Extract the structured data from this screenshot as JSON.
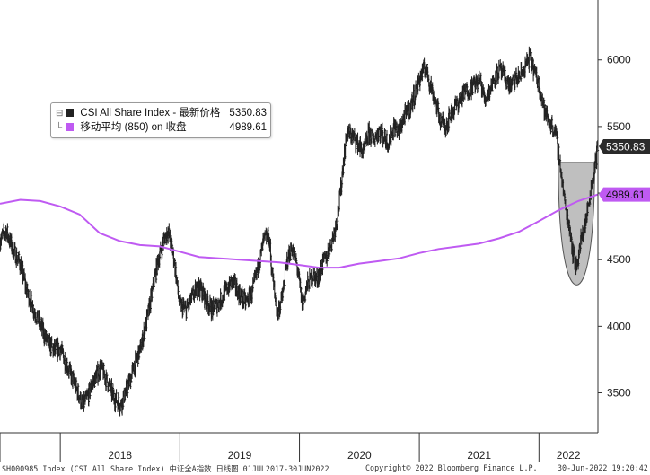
{
  "chart_data": {
    "type": "line",
    "title": "",
    "xlabel": "",
    "ylabel": "",
    "x_range": [
      "2017-07-01",
      "2022-06-30"
    ],
    "ylim": [
      3200,
      6450
    ],
    "y_ticks": [
      3500,
      4000,
      4500,
      5000,
      5500,
      6000
    ],
    "y_tick_labels": [
      "3500",
      "4000",
      "4500",
      "5000",
      "5500",
      "6000"
    ],
    "x_tick_labels": [
      "2018",
      "2019",
      "2020",
      "2021",
      "2022"
    ],
    "x_tick_positions": [
      "2018-01-01",
      "2019-01-01",
      "2020-01-01",
      "2021-01-01",
      "2022-01-01"
    ],
    "grid": false,
    "legend_position": "top-left",
    "series": [
      {
        "name": "CSI All Share Index - 最新价格",
        "legend_value": "5350.83",
        "last_label": "5350.83",
        "style": "price-bars",
        "color": "#222222",
        "points": [
          [
            "2017-07-03",
            4650
          ],
          [
            "2017-07-20",
            4720
          ],
          [
            "2017-08-10",
            4570
          ],
          [
            "2017-09-01",
            4470
          ],
          [
            "2017-09-20",
            4270
          ],
          [
            "2017-10-10",
            4140
          ],
          [
            "2017-11-01",
            4010
          ],
          [
            "2017-11-20",
            3900
          ],
          [
            "2017-12-10",
            3820
          ],
          [
            "2018-01-01",
            3830
          ],
          [
            "2018-01-20",
            3720
          ],
          [
            "2018-02-08",
            3600
          ],
          [
            "2018-02-28",
            3480
          ],
          [
            "2018-03-10",
            3400
          ],
          [
            "2018-03-25",
            3470
          ],
          [
            "2018-04-15",
            3600
          ],
          [
            "2018-05-05",
            3690
          ],
          [
            "2018-05-25",
            3580
          ],
          [
            "2018-06-15",
            3460
          ],
          [
            "2018-07-05",
            3410
          ],
          [
            "2018-07-25",
            3540
          ],
          [
            "2018-08-15",
            3700
          ],
          [
            "2018-09-05",
            3850
          ],
          [
            "2018-09-25",
            4080
          ],
          [
            "2018-10-10",
            4270
          ],
          [
            "2018-10-25",
            4480
          ],
          [
            "2018-11-10",
            4620
          ],
          [
            "2018-11-25",
            4720
          ],
          [
            "2018-12-05",
            4620
          ],
          [
            "2018-12-15",
            4500
          ],
          [
            "2018-12-31",
            4160
          ],
          [
            "2019-01-20",
            4120
          ],
          [
            "2019-02-10",
            4230
          ],
          [
            "2019-03-01",
            4300
          ],
          [
            "2019-03-20",
            4210
          ],
          [
            "2019-04-10",
            4120
          ],
          [
            "2019-05-01",
            4180
          ],
          [
            "2019-05-20",
            4260
          ],
          [
            "2019-06-10",
            4340
          ],
          [
            "2019-06-30",
            4250
          ],
          [
            "2019-07-20",
            4180
          ],
          [
            "2019-08-10",
            4250
          ],
          [
            "2019-08-30",
            4470
          ],
          [
            "2019-09-15",
            4650
          ],
          [
            "2019-09-30",
            4670
          ],
          [
            "2019-10-10",
            4400
          ],
          [
            "2019-10-25",
            4090
          ],
          [
            "2019-11-10",
            4220
          ],
          [
            "2019-11-25",
            4500
          ],
          [
            "2019-12-10",
            4590
          ],
          [
            "2019-12-25",
            4450
          ],
          [
            "2020-01-10",
            4160
          ],
          [
            "2020-01-25",
            4310
          ],
          [
            "2020-02-10",
            4380
          ],
          [
            "2020-02-25",
            4360
          ],
          [
            "2020-03-10",
            4460
          ],
          [
            "2020-03-25",
            4530
          ],
          [
            "2020-04-10",
            4650
          ],
          [
            "2020-04-25",
            4800
          ],
          [
            "2020-05-05",
            5000
          ],
          [
            "2020-05-15",
            5250
          ],
          [
            "2020-05-25",
            5450
          ],
          [
            "2020-06-10",
            5430
          ],
          [
            "2020-06-30",
            5360
          ],
          [
            "2020-07-15",
            5300
          ],
          [
            "2020-07-31",
            5450
          ],
          [
            "2020-08-15",
            5400
          ],
          [
            "2020-08-31",
            5480
          ],
          [
            "2020-09-15",
            5420
          ],
          [
            "2020-09-30",
            5380
          ],
          [
            "2020-10-15",
            5500
          ],
          [
            "2020-10-31",
            5460
          ],
          [
            "2020-11-15",
            5570
          ],
          [
            "2020-11-30",
            5620
          ],
          [
            "2020-12-15",
            5720
          ],
          [
            "2021-01-05",
            5880
          ],
          [
            "2021-01-20",
            5950
          ],
          [
            "2021-02-05",
            5800
          ],
          [
            "2021-02-20",
            5680
          ],
          [
            "2021-03-05",
            5560
          ],
          [
            "2021-03-20",
            5500
          ],
          [
            "2021-04-05",
            5580
          ],
          [
            "2021-04-20",
            5650
          ],
          [
            "2021-05-05",
            5700
          ],
          [
            "2021-05-20",
            5760
          ],
          [
            "2021-06-05",
            5790
          ],
          [
            "2021-06-20",
            5820
          ],
          [
            "2021-07-05",
            5850
          ],
          [
            "2021-07-20",
            5700
          ],
          [
            "2021-08-05",
            5780
          ],
          [
            "2021-08-20",
            5880
          ],
          [
            "2021-09-05",
            5920
          ],
          [
            "2021-09-20",
            5860
          ],
          [
            "2021-10-05",
            5800
          ],
          [
            "2021-10-20",
            5850
          ],
          [
            "2021-11-05",
            5880
          ],
          [
            "2021-11-20",
            5950
          ],
          [
            "2021-12-05",
            6020
          ],
          [
            "2021-12-20",
            5900
          ],
          [
            "2022-01-05",
            5780
          ],
          [
            "2022-01-20",
            5600
          ],
          [
            "2022-02-05",
            5520
          ],
          [
            "2022-02-20",
            5460
          ],
          [
            "2022-03-05",
            5250
          ],
          [
            "2022-03-15",
            5050
          ],
          [
            "2022-03-25",
            4850
          ],
          [
            "2022-04-05",
            4750
          ],
          [
            "2022-04-15",
            4550
          ],
          [
            "2022-04-26",
            4450
          ],
          [
            "2022-05-10",
            4650
          ],
          [
            "2022-05-25",
            4800
          ],
          [
            "2022-06-10",
            5050
          ],
          [
            "2022-06-20",
            5200
          ],
          [
            "2022-06-30",
            5350.83
          ]
        ]
      },
      {
        "name": "移动平均 (850) on 收盘",
        "legend_value": "4989.61",
        "last_label": "4989.61",
        "style": "line",
        "color": "#bf5af2",
        "points": [
          [
            "2017-07-01",
            4920
          ],
          [
            "2017-09-01",
            4950
          ],
          [
            "2017-11-01",
            4940
          ],
          [
            "2018-01-01",
            4900
          ],
          [
            "2018-03-01",
            4840
          ],
          [
            "2018-05-01",
            4700
          ],
          [
            "2018-07-01",
            4640
          ],
          [
            "2018-09-01",
            4610
          ],
          [
            "2018-11-01",
            4600
          ],
          [
            "2019-01-01",
            4560
          ],
          [
            "2019-03-01",
            4520
          ],
          [
            "2019-05-01",
            4510
          ],
          [
            "2019-07-01",
            4500
          ],
          [
            "2019-09-01",
            4490
          ],
          [
            "2019-11-01",
            4480
          ],
          [
            "2020-01-01",
            4460
          ],
          [
            "2020-03-01",
            4440
          ],
          [
            "2020-05-01",
            4440
          ],
          [
            "2020-07-01",
            4470
          ],
          [
            "2020-09-01",
            4490
          ],
          [
            "2020-11-01",
            4510
          ],
          [
            "2021-01-01",
            4550
          ],
          [
            "2021-03-01",
            4580
          ],
          [
            "2021-05-01",
            4600
          ],
          [
            "2021-07-01",
            4620
          ],
          [
            "2021-09-01",
            4660
          ],
          [
            "2021-11-01",
            4710
          ],
          [
            "2022-01-01",
            4790
          ],
          [
            "2022-03-01",
            4870
          ],
          [
            "2022-05-01",
            4940
          ],
          [
            "2022-06-30",
            4989.61
          ]
        ]
      }
    ],
    "annotations": [
      {
        "type": "shaded-region",
        "label": "",
        "color": "#b4b4b4",
        "x_range": [
          "2022-03-01",
          "2022-06-20"
        ],
        "y_top": 5230,
        "y_bottom": 4310,
        "bottom_date": "2022-04-26"
      }
    ]
  },
  "footer": {
    "ticker": "SH000985 Index (CSI All Share Index) 中证全A指数  日线图 01JUL2017-30JUN2022",
    "copyright": "Copyright© 2022 Bloomberg Finance L.P.",
    "timestamp": "30-Jun-2022 19:20:42"
  },
  "colors": {
    "price": "#222222",
    "moving_average": "#bf5af2",
    "shaded_region": "#b4b4b4",
    "axis": "#333333",
    "price_label_bg": "#2a2a2a",
    "ma_label_bg": "#bf5af2"
  }
}
